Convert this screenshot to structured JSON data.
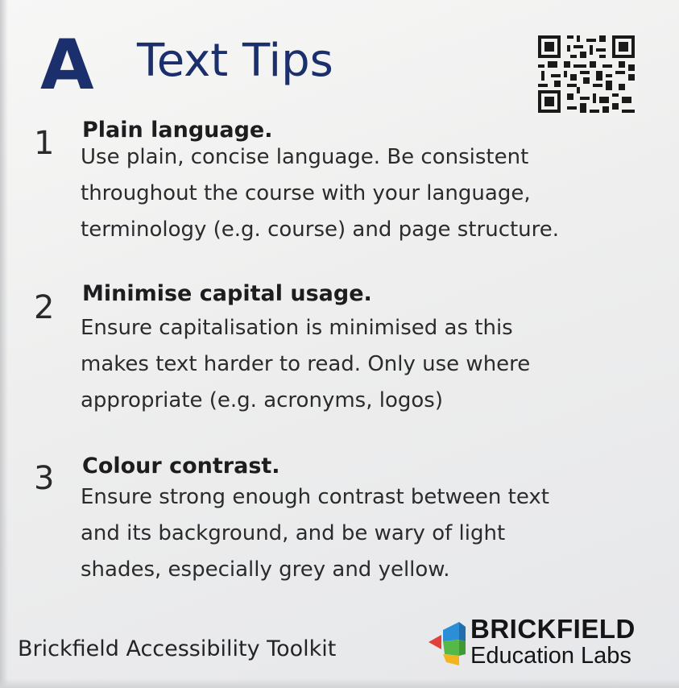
{
  "card": {
    "letter": "A",
    "title": "Text Tips",
    "qr_icon": "qr-code-icon"
  },
  "tips": [
    {
      "number": "1",
      "heading": "Plain language.",
      "body_lines": [
        "Use plain, concise language. Be consistent",
        "throughout the course with your language,",
        "terminology (e.g. course) and page structure."
      ]
    },
    {
      "number": "2",
      "heading": "Minimise capital usage.",
      "body_lines": [
        "Ensure capitalisation is minimised as this",
        "makes text harder to read. Only use where",
        "appropriate (e.g. acronyms, logos)"
      ]
    },
    {
      "number": "3",
      "heading": "Colour contrast.",
      "body_lines": [
        "Ensure strong enough contrast between text",
        "and its background, and be wary of light",
        "shades, especially grey and yellow."
      ]
    }
  ],
  "footer": {
    "toolkit_name": "Brickfield Accessibility Toolkit",
    "logo_icon": "brickfield-logo-icon",
    "logo_name": "BRICKFIELD",
    "logo_sub": "Education Labs"
  },
  "colors": {
    "title_navy": "#1b2f6d",
    "text_dark": "#1d1d1f",
    "logo_blue": "#2a8fd6",
    "logo_green": "#56b947",
    "logo_red": "#e2403a",
    "logo_yellow": "#f2b51f"
  }
}
